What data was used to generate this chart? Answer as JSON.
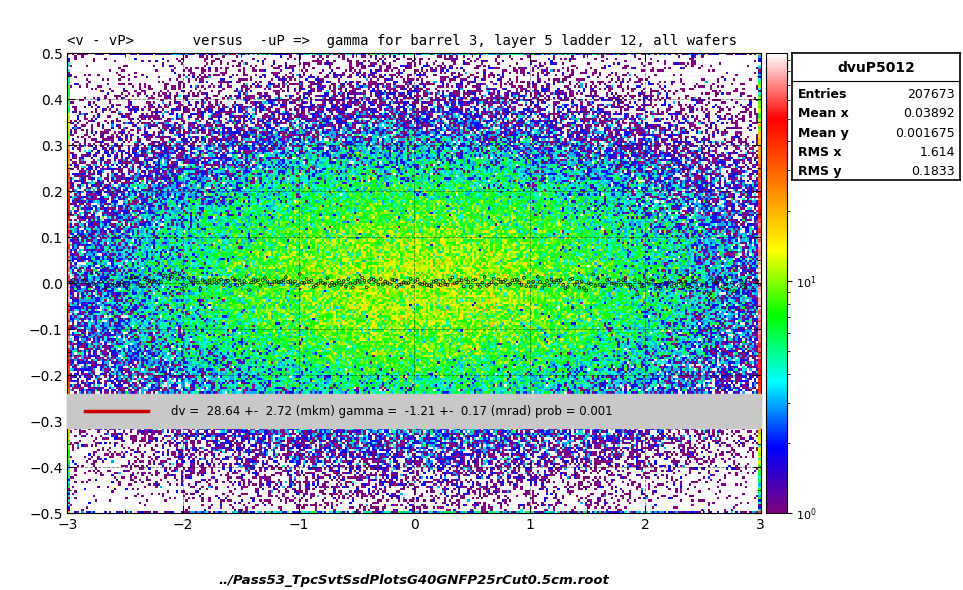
{
  "title": "<v - vP>       versus  -uP =>  gamma for barrel 3, layer 5 ladder 12, all wafers",
  "xlabel": "../Pass53_TpcSvtSsdPlotsG40GNFP25rCut0.5cm.root",
  "xlim": [
    -3,
    3
  ],
  "ylim": [
    -0.5,
    0.5
  ],
  "hist_name": "dvuP5012",
  "entries": "207673",
  "mean_x": "0.03892",
  "mean_y": "0.001675",
  "rms_x": "1.614",
  "rms_y": "0.1833",
  "fit_text": "dv =  28.64 +-  2.72 (mkm) gamma =  -1.21 +-  0.17 (mrad) prob = 0.001",
  "legend_line_color": "#cc0000",
  "background_color": "#ffffff",
  "seed": 42
}
